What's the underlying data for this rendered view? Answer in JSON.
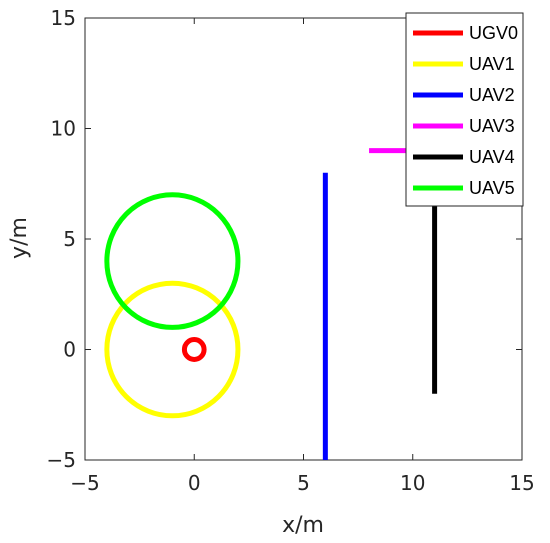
{
  "chart_data": {
    "type": "line",
    "title": "",
    "xlabel": "x/m",
    "ylabel": "y/m",
    "xlim": [
      -5,
      15
    ],
    "ylim": [
      -5,
      15
    ],
    "xticks": [
      -5,
      0,
      5,
      10,
      15
    ],
    "yticks": [
      -5,
      0,
      5,
      10,
      15
    ],
    "grid": false,
    "legend_position": "top-right",
    "series": [
      {
        "name": "UGV0",
        "shape": "circle",
        "color": "#ff0000",
        "center": [
          0,
          0
        ],
        "radius": 0.45
      },
      {
        "name": "UAV1",
        "shape": "circle",
        "color": "#ffff00",
        "center": [
          -1,
          0
        ],
        "radius": 3
      },
      {
        "name": "UAV2",
        "shape": "segment",
        "color": "#0000ff",
        "x": [
          6,
          6
        ],
        "y": [
          -5,
          8
        ]
      },
      {
        "name": "UAV3",
        "shape": "segment",
        "color": "#ff00ff",
        "x": [
          8,
          11
        ],
        "y": [
          9,
          9
        ]
      },
      {
        "name": "UAV4",
        "shape": "segment",
        "color": "#000000",
        "x": [
          11,
          11
        ],
        "y": [
          -2,
          9
        ]
      },
      {
        "name": "UAV5",
        "shape": "circle",
        "color": "#00ff00",
        "center": [
          -1,
          4
        ],
        "radius": 3
      }
    ]
  }
}
